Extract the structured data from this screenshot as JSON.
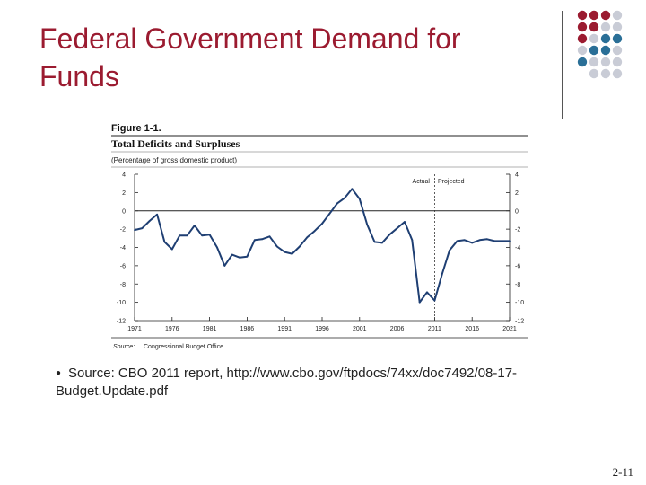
{
  "slide": {
    "title": "Federal Government Demand for Funds",
    "source_text": "Source: CBO 2011 report, http://www.cbo.gov/ftpdocs/74xx/doc7492/08-17-Budget.Update.pdf",
    "slide_number": "2-11",
    "title_color": "#9b1b30",
    "dot_colors": {
      "maroon": "#9b1b30",
      "blue": "#2a6f97",
      "gray": "#c9ccd6"
    }
  },
  "chart_data": {
    "type": "line",
    "figure_label": "Figure 1-1.",
    "title": "Total Deficits and Surpluses",
    "subtitle": "(Percentage of gross domestic product)",
    "source_label": "Source:",
    "source_value": "Congressional Budget Office.",
    "annotations": {
      "actual": "Actual",
      "projected": "Projected",
      "divider_x": 2011
    },
    "ylim": [
      -12,
      4
    ],
    "yticks": [
      4,
      2,
      0,
      -2,
      -4,
      -6,
      -8,
      -10,
      -12
    ],
    "ytick_labels": [
      "4",
      "2",
      "0",
      "-2",
      "-4",
      "-6",
      "-8",
      "-10",
      "-12"
    ],
    "xlim": [
      1971,
      2021
    ],
    "xticks": [
      1971,
      1976,
      1981,
      1986,
      1991,
      1996,
      2001,
      2006,
      2011,
      2016,
      2021
    ],
    "xtick_labels": [
      "1971",
      "1976",
      "1981",
      "1986",
      "1991",
      "1996",
      "2001",
      "2006",
      "2011",
      "2016",
      "2021"
    ],
    "series": [
      {
        "name": "Total deficit or surplus",
        "x": [
          1971,
          1972,
          1973,
          1974,
          1975,
          1976,
          1977,
          1978,
          1979,
          1980,
          1981,
          1982,
          1983,
          1984,
          1985,
          1986,
          1987,
          1988,
          1989,
          1990,
          1991,
          1992,
          1993,
          1994,
          1995,
          1996,
          1997,
          1998,
          1999,
          2000,
          2001,
          2002,
          2003,
          2004,
          2005,
          2006,
          2007,
          2008,
          2009,
          2010,
          2011,
          2012,
          2013,
          2014,
          2015,
          2016,
          2017,
          2018,
          2019,
          2020,
          2021
        ],
        "y": [
          -2.1,
          -1.9,
          -1.1,
          -0.4,
          -3.4,
          -4.2,
          -2.7,
          -2.7,
          -1.6,
          -2.7,
          -2.6,
          -4.0,
          -6.0,
          -4.8,
          -5.1,
          -5.0,
          -3.2,
          -3.1,
          -2.8,
          -3.9,
          -4.5,
          -4.7,
          -3.9,
          -2.9,
          -2.2,
          -1.4,
          -0.3,
          0.8,
          1.4,
          2.4,
          1.3,
          -1.5,
          -3.4,
          -3.5,
          -2.6,
          -1.9,
          -1.2,
          -3.2,
          -10.0,
          -8.9,
          -9.8,
          -6.9,
          -4.3,
          -3.3,
          -3.2,
          -3.5,
          -3.2,
          -3.1,
          -3.3,
          -3.3,
          -3.3
        ]
      }
    ]
  }
}
